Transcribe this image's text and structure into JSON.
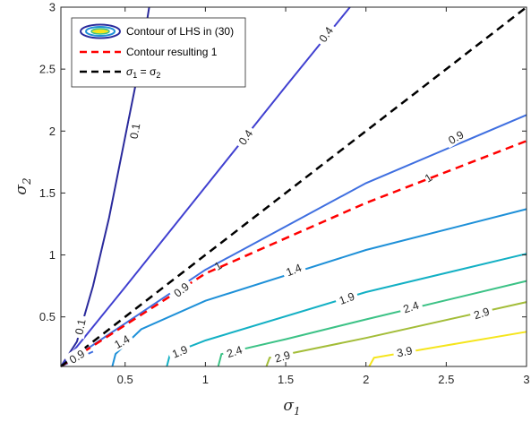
{
  "chart_data": {
    "type": "line",
    "xlabel": "σ",
    "xlabel_sub": "1",
    "ylabel": "σ",
    "ylabel_sub": "2",
    "xlim": [
      0.1,
      3
    ],
    "ylim": [
      0.1,
      3
    ],
    "xticks": [
      0.5,
      1,
      1.5,
      2,
      2.5,
      3
    ],
    "xtick_labels": [
      "0.5",
      "1",
      "1.5",
      "2",
      "2.5",
      "3"
    ],
    "yticks": [
      0.5,
      1,
      1.5,
      2,
      2.5,
      3
    ],
    "ytick_labels": [
      "0.5",
      "1",
      "1.5",
      "2",
      "2.5",
      "3"
    ],
    "grid": false,
    "legend": {
      "placement": "top-left",
      "entries": [
        {
          "label": "Contour of LHS in (30)",
          "style": "contour-swatch"
        },
        {
          "label": "Contour resulting 1",
          "style": "dashed",
          "color": "#ff0000"
        },
        {
          "label": "σ1 = σ2",
          "style": "dashed",
          "color": "#000000",
          "label_parts": [
            "σ",
            "1",
            " = σ",
            "2"
          ]
        }
      ]
    },
    "series": [
      {
        "level": "0.1",
        "color": "#2a2a9c",
        "points": [
          [
            0.1,
            0.1
          ],
          [
            0.2,
            0.3
          ],
          [
            0.3,
            0.75
          ],
          [
            0.4,
            1.3
          ],
          [
            0.5,
            1.95
          ],
          [
            0.6,
            2.6
          ],
          [
            0.65,
            3.0
          ]
        ],
        "label_positions": [
          [
            0.22,
            0.42
          ],
          [
            0.56,
            2.0
          ]
        ],
        "label_angles": [
          -78,
          -80
        ]
      },
      {
        "level": "0.4",
        "color": "#4040d0",
        "points": [
          [
            0.1,
            0.1
          ],
          [
            0.5,
            0.74
          ],
          [
            1.0,
            1.55
          ],
          [
            1.5,
            2.36
          ],
          [
            1.9,
            3.0
          ]
        ],
        "label_positions": [
          [
            1.25,
            1.95
          ],
          [
            1.75,
            2.78
          ]
        ],
        "label_angles": [
          -55,
          -55
        ]
      },
      {
        "level": "0.9",
        "color": "#3f6fe0",
        "points": [
          [
            0.1,
            0.1
          ],
          [
            1.0,
            0.88
          ],
          [
            2.0,
            1.58
          ],
          [
            3.0,
            2.13
          ]
        ],
        "label_positions": [
          [
            0.85,
            0.72
          ],
          [
            2.56,
            1.95
          ]
        ],
        "label_angles": [
          -38,
          -30
        ]
      },
      {
        "level": "0.9",
        "color": "#3f6fe0",
        "points": [
          [
            0.1,
            0.1
          ],
          [
            0.3,
            0.22
          ]
        ],
        "label_positions": [
          [
            0.2,
            0.18
          ]
        ],
        "label_angles": [
          -32
        ]
      },
      {
        "level": "1.4",
        "color": "#1e90d8",
        "points": [
          [
            0.42,
            0.1
          ],
          [
            0.44,
            0.2
          ],
          [
            0.6,
            0.4
          ],
          [
            1.0,
            0.63
          ],
          [
            2.0,
            1.04
          ],
          [
            3.0,
            1.37
          ]
        ],
        "label_positions": [
          [
            1.55,
            0.88
          ],
          [
            0.48,
            0.3
          ]
        ],
        "label_angles": [
          -22,
          -30
        ]
      },
      {
        "level": "1.9",
        "color": "#13b0c4",
        "points": [
          [
            0.76,
            0.1
          ],
          [
            0.78,
            0.2
          ],
          [
            1.0,
            0.31
          ],
          [
            2.0,
            0.7
          ],
          [
            3.0,
            1.01
          ]
        ],
        "label_positions": [
          [
            1.88,
            0.65
          ],
          [
            0.84,
            0.22
          ]
        ],
        "label_angles": [
          -20,
          -22
        ]
      },
      {
        "level": "2.4",
        "color": "#3cc286",
        "points": [
          [
            1.08,
            0.1
          ],
          [
            1.1,
            0.2
          ],
          [
            1.5,
            0.32
          ],
          [
            2.0,
            0.48
          ],
          [
            3.0,
            0.79
          ]
        ],
        "label_positions": [
          [
            2.28,
            0.58
          ],
          [
            1.18,
            0.22
          ]
        ],
        "label_angles": [
          -18,
          -18
        ]
      },
      {
        "level": "2.9",
        "color": "#a3bd38",
        "points": [
          [
            1.38,
            0.1
          ],
          [
            1.4,
            0.17
          ],
          [
            2.0,
            0.33
          ],
          [
            3.0,
            0.62
          ]
        ],
        "label_positions": [
          [
            2.72,
            0.53
          ],
          [
            1.48,
            0.18
          ]
        ],
        "label_angles": [
          -17,
          -16
        ]
      },
      {
        "level": "3.9",
        "color": "#f5e51c",
        "points": [
          [
            2.02,
            0.1
          ],
          [
            2.05,
            0.17
          ],
          [
            2.5,
            0.27
          ],
          [
            3.0,
            0.38
          ]
        ],
        "label_positions": [
          [
            2.24,
            0.22
          ]
        ],
        "label_angles": [
          -12
        ]
      }
    ],
    "ref_lines": [
      {
        "name": "Contour resulting 1",
        "color": "#ff0000",
        "dash": true,
        "points": [
          [
            0.1,
            0.1
          ],
          [
            1.0,
            0.85
          ],
          [
            2.0,
            1.42
          ],
          [
            3.0,
            1.92
          ]
        ],
        "label": "1",
        "label_positions": [
          [
            1.08,
            0.91
          ],
          [
            2.39,
            1.62
          ]
        ]
      },
      {
        "name": "σ1 = σ2",
        "color": "#000000",
        "dash": true,
        "points": [
          [
            0.1,
            0.1
          ],
          [
            3.0,
            3.0
          ]
        ]
      }
    ]
  }
}
